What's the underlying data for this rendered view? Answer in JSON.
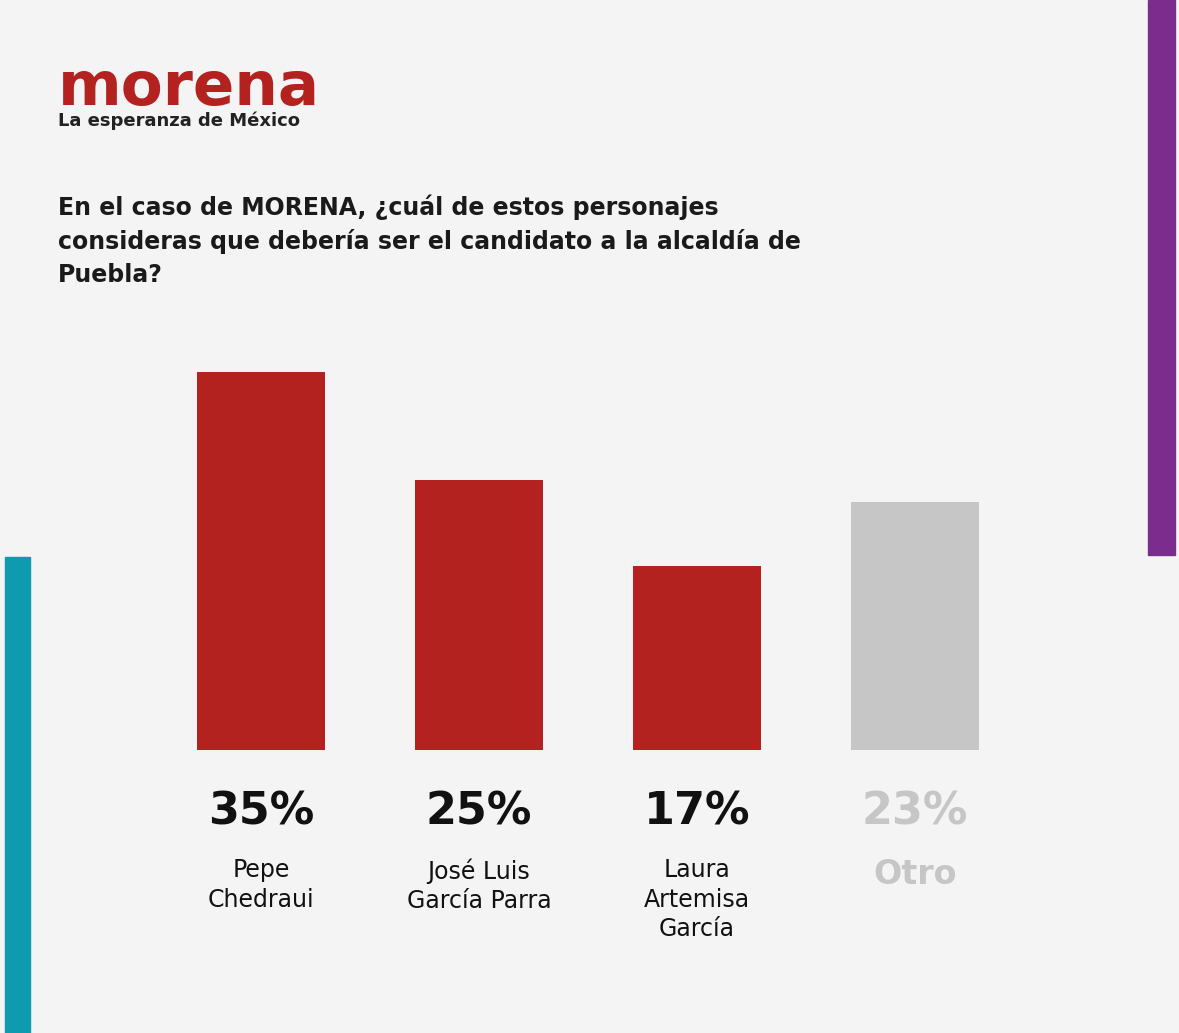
{
  "header": {
    "logo": "morena",
    "tagline": "La esperanza de México"
  },
  "chart_data": {
    "type": "bar",
    "title": "En el caso de MORENA, ¿cuál de estos personajes consideras que debería ser el candidato a la alcaldía de Puebla?",
    "categories": [
      "Pepe Chedraui",
      "José Luis García Parra",
      "Laura Artemisa García",
      "Otro"
    ],
    "values": [
      35,
      25,
      17,
      23
    ],
    "value_labels": [
      "35%",
      "25%",
      "17%",
      "23%"
    ],
    "colors": [
      "#b3221f",
      "#b3221f",
      "#b3221f",
      "#c6c6c6"
    ],
    "ylim": [
      0,
      35
    ],
    "data_labels": true,
    "tick_labels": false,
    "grid": false
  }
}
